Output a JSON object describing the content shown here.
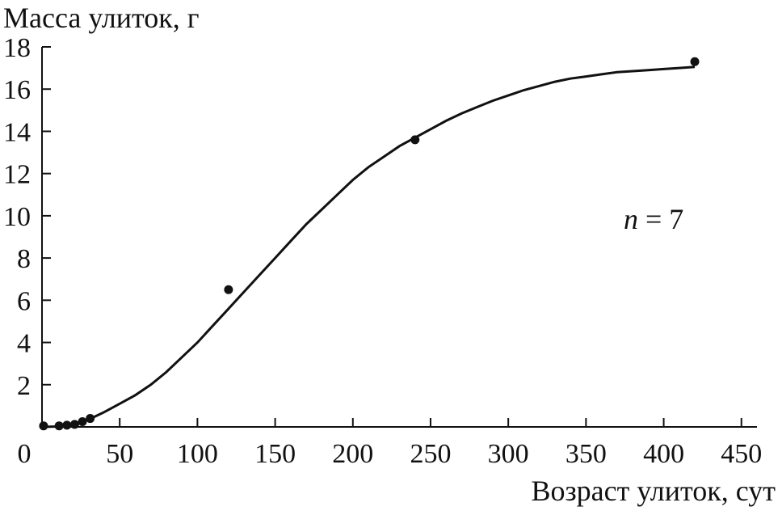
{
  "chart_data": {
    "type": "scatter",
    "ylabel": "Масса улиток, г",
    "xlabel": "Возраст улиток, сут",
    "annotation": {
      "var": "n",
      "rest": " = 7"
    },
    "xlim": [
      0,
      460
    ],
    "ylim": [
      0,
      18
    ],
    "x_ticks": [
      {
        "value": 0,
        "label": "0"
      },
      {
        "value": 50,
        "label": "50"
      },
      {
        "value": 100,
        "label": "100"
      },
      {
        "value": 150,
        "label": "150"
      },
      {
        "value": 200,
        "label": "200"
      },
      {
        "value": 250,
        "label": "250"
      },
      {
        "value": 300,
        "label": "300"
      },
      {
        "value": 350,
        "label": "350"
      },
      {
        "value": 400,
        "label": "400"
      },
      {
        "value": 450,
        "label": "450"
      }
    ],
    "y_ticks": [
      {
        "value": 2,
        "label": "2"
      },
      {
        "value": 4,
        "label": "4"
      },
      {
        "value": 6,
        "label": "6"
      },
      {
        "value": 8,
        "label": "8"
      },
      {
        "value": 10,
        "label": "10"
      },
      {
        "value": 12,
        "label": "12"
      },
      {
        "value": 14,
        "label": "14"
      },
      {
        "value": 16,
        "label": "16"
      },
      {
        "value": 18,
        "label": "18"
      }
    ],
    "points": [
      {
        "x": 1,
        "y": 0.05
      },
      {
        "x": 11,
        "y": 0.05
      },
      {
        "x": 16,
        "y": 0.08
      },
      {
        "x": 21,
        "y": 0.12
      },
      {
        "x": 26,
        "y": 0.25
      },
      {
        "x": 31,
        "y": 0.4
      },
      {
        "x": 120,
        "y": 6.5
      },
      {
        "x": 240,
        "y": 13.6
      },
      {
        "x": 420,
        "y": 17.3
      }
    ],
    "curve": [
      [
        0,
        0.0
      ],
      [
        10,
        0.02
      ],
      [
        20,
        0.1
      ],
      [
        30,
        0.35
      ],
      [
        40,
        0.7
      ],
      [
        50,
        1.1
      ],
      [
        60,
        1.5
      ],
      [
        70,
        2.0
      ],
      [
        80,
        2.6
      ],
      [
        90,
        3.3
      ],
      [
        100,
        4.0
      ],
      [
        110,
        4.8
      ],
      [
        120,
        5.6
      ],
      [
        130,
        6.4
      ],
      [
        140,
        7.2
      ],
      [
        150,
        8.0
      ],
      [
        160,
        8.8
      ],
      [
        170,
        9.6
      ],
      [
        180,
        10.3
      ],
      [
        190,
        11.0
      ],
      [
        200,
        11.7
      ],
      [
        210,
        12.3
      ],
      [
        220,
        12.8
      ],
      [
        230,
        13.3
      ],
      [
        240,
        13.7
      ],
      [
        250,
        14.1
      ],
      [
        260,
        14.5
      ],
      [
        270,
        14.85
      ],
      [
        280,
        15.15
      ],
      [
        290,
        15.45
      ],
      [
        300,
        15.7
      ],
      [
        310,
        15.95
      ],
      [
        320,
        16.15
      ],
      [
        330,
        16.35
      ],
      [
        340,
        16.5
      ],
      [
        350,
        16.6
      ],
      [
        360,
        16.7
      ],
      [
        370,
        16.8
      ],
      [
        380,
        16.85
      ],
      [
        390,
        16.9
      ],
      [
        400,
        16.95
      ],
      [
        410,
        17.0
      ],
      [
        420,
        17.05
      ]
    ],
    "grid": false,
    "legend": "none"
  }
}
